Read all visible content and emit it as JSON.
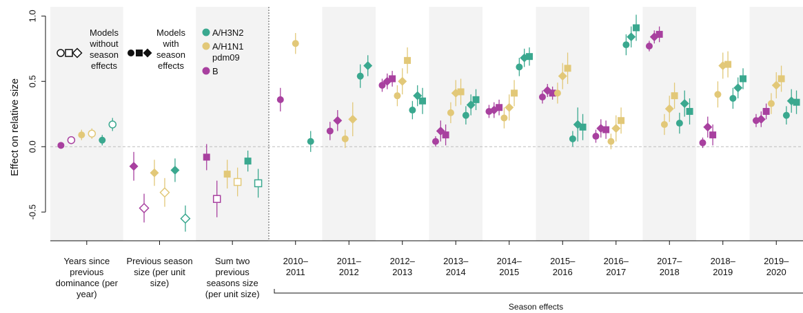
{
  "chart_data": {
    "type": "dotwhisker",
    "ylabel": "Effect on relative size",
    "ylim": [
      -0.72,
      1.07
    ],
    "yticks": [
      -0.5,
      {
        "value": 0,
        "label": "0.0"
      },
      0.5,
      {
        "value": 1,
        "label": "1.0"
      }
    ],
    "categories": [
      "Years since previous dominance (per year)",
      "Previous season size (per unit size)",
      "Sum two previous seasons size (per unit size)",
      "2010–2011",
      "2011–2012",
      "2012–2013",
      "2013–2014",
      "2014–2015",
      "2015–2016",
      "2016–2017",
      "2017–2018",
      "2018–2019",
      "2019–2020"
    ],
    "group_label": "Season effects",
    "legend_models": [
      "Models without season effects",
      "Models with season effects"
    ],
    "shapes": [
      "circle",
      "diamond",
      "square"
    ],
    "series": [
      {
        "name": "A/H3N2",
        "color": "#3aa88f",
        "values": [
          [
            0.05,
            null,
            null
          ],
          [
            null,
            -0.18,
            null
          ],
          [
            null,
            null,
            -0.11
          ],
          [
            0.04,
            null,
            null
          ],
          [
            0.54,
            0.62,
            null
          ],
          [
            0.28,
            0.39,
            0.35
          ],
          [
            0.24,
            0.32,
            0.36
          ],
          [
            0.61,
            0.68,
            0.69
          ],
          [
            0.06,
            0.17,
            0.15
          ],
          [
            0.78,
            0.84,
            0.91
          ],
          [
            0.18,
            0.33,
            0.27
          ],
          [
            0.37,
            0.45,
            0.52
          ],
          [
            0.24,
            0.35,
            0.34
          ]
        ],
        "errors": [
          [
            0.04,
            null,
            null
          ],
          [
            null,
            0.09,
            null
          ],
          [
            null,
            null,
            0.08
          ],
          [
            0.08,
            null,
            null
          ],
          [
            0.09,
            0.08,
            null
          ],
          [
            0.07,
            0.08,
            0.1
          ],
          [
            0.07,
            0.08,
            0.08
          ],
          [
            0.07,
            0.07,
            0.07
          ],
          [
            0.06,
            0.13,
            0.1
          ],
          [
            0.08,
            0.08,
            0.1
          ],
          [
            0.08,
            0.1,
            0.1
          ],
          [
            0.08,
            0.08,
            0.08
          ],
          [
            0.07,
            0.09,
            0.09
          ]
        ],
        "open_values": [
          [
            0.17,
            null,
            null
          ],
          [
            null,
            -0.55,
            null
          ],
          [
            null,
            null,
            -0.28
          ],
          null,
          null,
          null,
          null,
          null,
          null,
          null,
          null,
          null,
          null
        ],
        "open_errors": [
          [
            0.05,
            null,
            null
          ],
          [
            null,
            0.1,
            null
          ],
          [
            null,
            null,
            0.11
          ],
          null,
          null,
          null,
          null,
          null,
          null,
          null,
          null,
          null,
          null
        ]
      },
      {
        "name": "A/H1N1 pdm09",
        "color": "#e2c878",
        "values": [
          [
            0.09,
            null,
            null
          ],
          [
            null,
            -0.2,
            null
          ],
          [
            null,
            null,
            -0.21
          ],
          [
            0.79,
            null,
            null
          ],
          [
            0.06,
            0.21,
            null
          ],
          [
            0.39,
            0.5,
            0.66
          ],
          [
            0.26,
            0.41,
            0.42
          ],
          [
            0.22,
            0.3,
            0.41
          ],
          [
            0.41,
            0.54,
            0.6
          ],
          [
            0.04,
            0.14,
            0.2
          ],
          [
            0.17,
            0.29,
            0.39
          ],
          [
            0.4,
            0.62,
            0.63
          ],
          [
            0.33,
            0.47,
            0.52
          ]
        ],
        "errors": [
          [
            0.04,
            null,
            null
          ],
          [
            null,
            0.1,
            null
          ],
          [
            null,
            null,
            0.11
          ],
          [
            0.08,
            null,
            null
          ],
          [
            0.07,
            0.13,
            null
          ],
          [
            0.08,
            0.1,
            0.1
          ],
          [
            0.08,
            0.1,
            0.1
          ],
          [
            0.08,
            0.1,
            0.1
          ],
          [
            0.08,
            0.1,
            0.12
          ],
          [
            0.06,
            0.1,
            0.1
          ],
          [
            0.08,
            0.1,
            0.1
          ],
          [
            0.1,
            0.1,
            0.1
          ],
          [
            0.08,
            0.1,
            0.1
          ]
        ],
        "open_values": [
          [
            0.1,
            null,
            null
          ],
          [
            null,
            -0.35,
            null
          ],
          [
            null,
            null,
            -0.27
          ],
          null,
          null,
          null,
          null,
          null,
          null,
          null,
          null,
          null,
          null
        ],
        "open_errors": [
          [
            0.04,
            null,
            null
          ],
          [
            null,
            0.11,
            null
          ],
          [
            null,
            null,
            0.11
          ],
          null,
          null,
          null,
          null,
          null,
          null,
          null,
          null,
          null,
          null
        ]
      },
      {
        "name": "B",
        "color": "#a8409f",
        "values": [
          [
            0.01,
            null,
            null
          ],
          [
            null,
            -0.15,
            null
          ],
          [
            null,
            null,
            -0.08
          ],
          [
            0.36,
            null,
            null
          ],
          [
            0.12,
            0.2,
            null
          ],
          [
            0.47,
            0.5,
            0.52
          ],
          [
            0.04,
            0.12,
            0.09
          ],
          [
            0.27,
            0.28,
            0.3
          ],
          [
            0.38,
            0.43,
            0.41
          ],
          [
            0.08,
            0.14,
            0.13
          ],
          [
            0.77,
            0.84,
            0.86
          ],
          [
            0.03,
            0.15,
            0.09
          ],
          [
            0.2,
            0.21,
            0.27
          ]
        ],
        "errors": [
          [
            0.01,
            null,
            null
          ],
          [
            null,
            0.11,
            null
          ],
          [
            null,
            null,
            0.1
          ],
          [
            0.09,
            null,
            null
          ],
          [
            0.07,
            0.08,
            null
          ],
          [
            0.05,
            0.06,
            0.06
          ],
          [
            0.04,
            0.08,
            0.08
          ],
          [
            0.05,
            0.06,
            0.06
          ],
          [
            0.05,
            0.05,
            0.05
          ],
          [
            0.05,
            0.07,
            0.07
          ],
          [
            0.04,
            0.05,
            0.06
          ],
          [
            0.04,
            0.08,
            0.08
          ],
          [
            0.05,
            0.06,
            0.06
          ]
        ],
        "open_values": [
          [
            0.05,
            null,
            null
          ],
          [
            null,
            -0.47,
            null
          ],
          [
            null,
            null,
            -0.4
          ],
          null,
          null,
          null,
          null,
          null,
          null,
          null,
          null,
          null,
          null
        ],
        "open_errors": [
          [
            0.02,
            null,
            null
          ],
          [
            null,
            0.11,
            null
          ],
          [
            null,
            null,
            0.14
          ],
          null,
          null,
          null,
          null,
          null,
          null,
          null,
          null,
          null,
          null
        ]
      }
    ],
    "zero_line": true
  }
}
